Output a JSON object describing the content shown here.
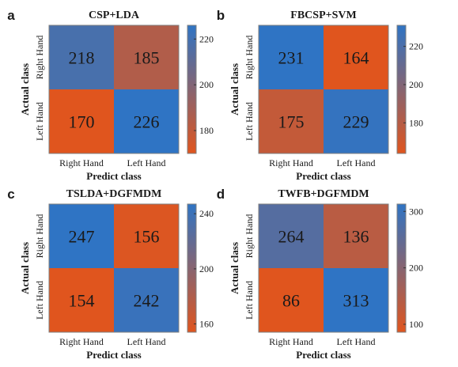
{
  "chart_data": [
    {
      "type": "heatmap",
      "panel_label": "a",
      "title": "CSP+LDA",
      "xlabel": "Predict class",
      "ylabel": "Actual class",
      "x_categories": [
        "Right Hand",
        "Left Hand"
      ],
      "y_categories": [
        "Right Hand",
        "Left Hand"
      ],
      "values": [
        [
          218,
          185
        ],
        [
          170,
          226
        ]
      ],
      "colorbar": {
        "range": [
          170,
          226
        ],
        "ticks": [
          "180",
          "200",
          "220"
        ],
        "tick_values": [
          180,
          200,
          220
        ]
      }
    },
    {
      "type": "heatmap",
      "panel_label": "b",
      "title": "FBCSP+SVM",
      "xlabel": "Predict class",
      "ylabel": "Actual class",
      "x_categories": [
        "Right Hand",
        "Left Hand"
      ],
      "y_categories": [
        "Right Hand",
        "Left Hand"
      ],
      "values": [
        [
          231,
          164
        ],
        [
          175,
          229
        ]
      ],
      "colorbar": {
        "range": [
          164,
          231
        ],
        "ticks": [
          "180",
          "200",
          "220"
        ],
        "tick_values": [
          180,
          200,
          220
        ]
      }
    },
    {
      "type": "heatmap",
      "panel_label": "c",
      "title": "TSLDA+DGFMDM",
      "xlabel": "Predict class",
      "ylabel": "Actual class",
      "x_categories": [
        "Right Hand",
        "Left Hand"
      ],
      "y_categories": [
        "Right Hand",
        "Left Hand"
      ],
      "values": [
        [
          247,
          156
        ],
        [
          154,
          242
        ]
      ],
      "colorbar": {
        "range": [
          154,
          247
        ],
        "ticks": [
          "160",
          "200",
          "240"
        ],
        "tick_values": [
          160,
          200,
          240
        ]
      }
    },
    {
      "type": "heatmap",
      "panel_label": "d",
      "title": "TWFB+DGFMDM",
      "xlabel": "Predict class",
      "ylabel": "Actual class",
      "x_categories": [
        "Right Hand",
        "Left Hand"
      ],
      "y_categories": [
        "Right Hand",
        "Left Hand"
      ],
      "values": [
        [
          264,
          136
        ],
        [
          86,
          313
        ]
      ],
      "colorbar": {
        "range": [
          86,
          313
        ],
        "ticks": [
          "100",
          "200",
          "300"
        ],
        "tick_values": [
          100,
          200,
          300
        ]
      }
    }
  ],
  "colors": {
    "low": "#e0551e",
    "high": "#2f74c4",
    "frame": "#7f7f7f",
    "text": "#1a1a1a"
  }
}
